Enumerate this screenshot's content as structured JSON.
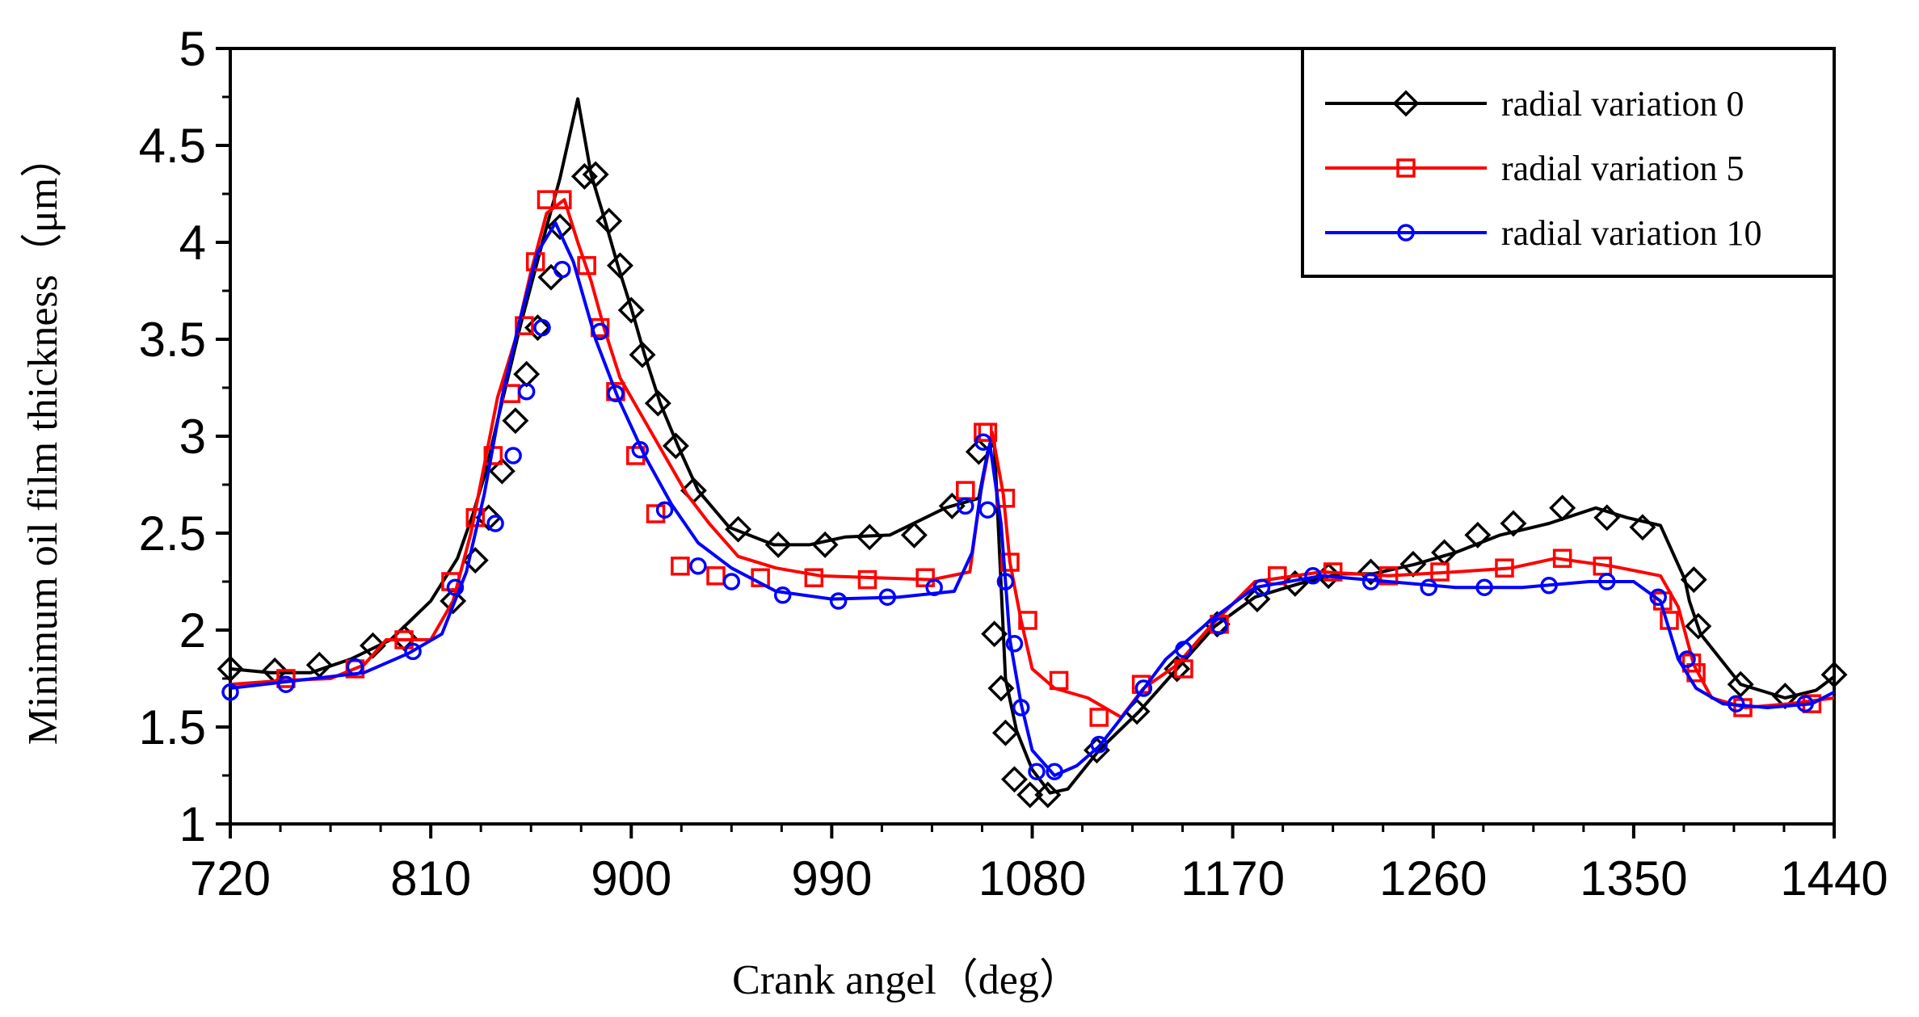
{
  "chart_data": {
    "type": "line",
    "title": "",
    "xlabel": "Crank angel（deg）",
    "ylabel": "Minimum oil film thickness（μm）",
    "xlim": [
      720,
      1440
    ],
    "ylim": [
      1,
      5
    ],
    "x_ticks": [
      720,
      810,
      900,
      990,
      1080,
      1170,
      1260,
      1350,
      1440
    ],
    "x_tick_labels": [
      "720",
      "810",
      "900",
      "990",
      "1080",
      "1170",
      "1260",
      "1350",
      "1440"
    ],
    "y_ticks": [
      1,
      1.5,
      2,
      2.5,
      3,
      3.5,
      4,
      4.5,
      5
    ],
    "y_tick_labels": [
      "1",
      "1.5",
      "2",
      "2.5",
      "3",
      "3.5",
      "4",
      "4.5",
      "5"
    ],
    "legend_position": "top-right",
    "grid": false,
    "series": [
      {
        "name": "radial variation 0",
        "color": "#000000",
        "marker": "diamond",
        "x": [
          720,
          738,
          756,
          774,
          792,
          810,
          822,
          829,
          835,
          840,
          845,
          850,
          856,
          862,
          868,
          876,
          882,
          888,
          894,
          900,
          906,
          913,
          921,
          930,
          944,
          964,
          980,
          996,
          1016,
          1041,
          1056,
          1060,
          1063,
          1068,
          1073,
          1080,
          1088,
          1096,
          1110,
          1128,
          1145,
          1162,
          1180,
          1200,
          1218,
          1233,
          1252,
          1270,
          1290,
          1312,
          1333,
          1347,
          1362,
          1373,
          1375,
          1380,
          1398,
          1418,
          1432,
          1440
        ],
        "y": [
          1.8,
          1.78,
          1.78,
          1.85,
          1.95,
          2.15,
          2.37,
          2.6,
          2.83,
          3.08,
          3.32,
          3.56,
          3.82,
          4.08,
          4.33,
          4.74,
          4.35,
          4.12,
          3.88,
          3.66,
          3.42,
          3.17,
          2.95,
          2.72,
          2.53,
          2.44,
          2.44,
          2.48,
          2.49,
          2.63,
          2.68,
          2.92,
          2.97,
          1.75,
          1.48,
          1.28,
          1.16,
          1.18,
          1.38,
          1.58,
          1.8,
          2.02,
          2.17,
          2.24,
          2.29,
          2.29,
          2.34,
          2.4,
          2.49,
          2.55,
          2.63,
          2.58,
          2.54,
          2.26,
          2.15,
          1.98,
          1.72,
          1.65,
          1.69,
          1.76
        ],
        "marker_x": [
          720,
          740,
          760,
          784,
          798,
          820,
          830,
          836,
          842,
          848,
          853,
          858,
          864,
          868,
          879,
          884,
          890,
          895,
          900,
          905,
          912,
          920,
          928,
          948,
          966,
          987,
          1007,
          1027,
          1044,
          1056,
          1063,
          1066,
          1068,
          1072,
          1079,
          1087,
          1109,
          1127,
          1145,
          1163,
          1181,
          1198,
          1213,
          1232,
          1251,
          1265,
          1280,
          1296,
          1318,
          1338,
          1354,
          1377,
          1379,
          1398,
          1418,
          1440
        ],
        "marker_y": [
          1.8,
          1.79,
          1.82,
          1.92,
          1.96,
          2.15,
          2.36,
          2.58,
          2.82,
          3.08,
          3.32,
          3.56,
          3.82,
          4.08,
          4.34,
          4.35,
          4.11,
          3.88,
          3.65,
          3.42,
          3.17,
          2.95,
          2.72,
          2.52,
          2.44,
          2.44,
          2.48,
          2.49,
          2.64,
          2.92,
          1.98,
          1.7,
          1.47,
          1.23,
          1.15,
          1.15,
          1.38,
          1.58,
          1.8,
          2.03,
          2.16,
          2.24,
          2.28,
          2.3,
          2.34,
          2.4,
          2.49,
          2.55,
          2.63,
          2.58,
          2.53,
          2.26,
          2.02,
          1.72,
          1.66,
          1.77
        ]
      },
      {
        "name": "radial variation 5",
        "color": "#ff0000",
        "marker": "square",
        "x": [
          720,
          744,
          765,
          780,
          790,
          810,
          820,
          828,
          834,
          840,
          848,
          855,
          862,
          870,
          876,
          882,
          888,
          895,
          905,
          915,
          925,
          935,
          948,
          965,
          985,
          1010,
          1035,
          1052,
          1057,
          1062,
          1067,
          1070,
          1075,
          1080,
          1090,
          1105,
          1120,
          1130,
          1145,
          1160,
          1180,
          1210,
          1240,
          1270,
          1295,
          1315,
          1340,
          1362,
          1370,
          1377,
          1385,
          1400,
          1420,
          1440
        ],
        "y": [
          1.72,
          1.74,
          1.75,
          1.82,
          1.95,
          1.95,
          2.15,
          2.5,
          2.85,
          3.2,
          3.5,
          3.85,
          4.15,
          4.22,
          4.0,
          3.8,
          3.55,
          3.3,
          3.1,
          2.9,
          2.7,
          2.55,
          2.38,
          2.32,
          2.28,
          2.27,
          2.26,
          2.3,
          2.72,
          3.02,
          2.7,
          2.35,
          2.05,
          1.8,
          1.7,
          1.65,
          1.55,
          1.7,
          1.82,
          2.02,
          2.25,
          2.3,
          2.28,
          2.3,
          2.32,
          2.37,
          2.33,
          2.28,
          2.12,
          1.82,
          1.65,
          1.6,
          1.62,
          1.65
        ],
        "marker_x": [
          745,
          776,
          798,
          819,
          830,
          838,
          846,
          852,
          857,
          862,
          869,
          880,
          886,
          893,
          902,
          911,
          922,
          938,
          958,
          982,
          1006,
          1032,
          1050,
          1058,
          1060,
          1068,
          1070,
          1078,
          1092,
          1110,
          1129,
          1148,
          1164,
          1190,
          1215,
          1240,
          1263,
          1292,
          1318,
          1336,
          1363,
          1366,
          1376,
          1378,
          1399,
          1430
        ],
        "marker_y": [
          1.75,
          1.8,
          1.95,
          2.25,
          2.58,
          2.9,
          3.22,
          3.57,
          3.9,
          4.22,
          4.22,
          3.88,
          3.56,
          3.23,
          2.9,
          2.6,
          2.33,
          2.28,
          2.27,
          2.27,
          2.26,
          2.27,
          2.72,
          3.02,
          3.02,
          2.68,
          2.35,
          2.05,
          1.74,
          1.55,
          1.72,
          1.8,
          2.03,
          2.28,
          2.3,
          2.28,
          2.3,
          2.32,
          2.37,
          2.33,
          2.15,
          2.05,
          1.83,
          1.78,
          1.6,
          1.62
        ]
      },
      {
        "name": "radial variation 10",
        "color": "#0000ff",
        "marker": "circle",
        "x": [
          720,
          750,
          780,
          800,
          815,
          826,
          834,
          842,
          850,
          858,
          866,
          874,
          884,
          894,
          906,
          918,
          930,
          945,
          965,
          990,
          1020,
          1045,
          1053,
          1058,
          1061,
          1066,
          1070,
          1075,
          1080,
          1090,
          1100,
          1110,
          1125,
          1140,
          1160,
          1180,
          1210,
          1240,
          1270,
          1300,
          1330,
          1350,
          1362,
          1370,
          1378,
          1390,
          1410,
          1430,
          1440
        ],
        "y": [
          1.7,
          1.74,
          1.78,
          1.88,
          1.98,
          2.3,
          2.7,
          3.2,
          3.6,
          3.95,
          4.1,
          3.9,
          3.5,
          3.2,
          2.9,
          2.65,
          2.45,
          2.32,
          2.2,
          2.16,
          2.17,
          2.2,
          2.4,
          2.8,
          2.96,
          2.55,
          1.95,
          1.62,
          1.38,
          1.25,
          1.3,
          1.4,
          1.62,
          1.85,
          2.05,
          2.22,
          2.28,
          2.25,
          2.22,
          2.22,
          2.25,
          2.25,
          2.15,
          1.85,
          1.7,
          1.62,
          1.6,
          1.62,
          1.68
        ],
        "marker_x": [
          720,
          745,
          776,
          802,
          821,
          839,
          847,
          853,
          860,
          869,
          886,
          893,
          904,
          915,
          930,
          945,
          968,
          993,
          1015,
          1036,
          1050,
          1058,
          1060,
          1068,
          1072,
          1075,
          1082,
          1090,
          1110,
          1130,
          1148,
          1164,
          1183,
          1206,
          1232,
          1258,
          1283,
          1312,
          1338,
          1361,
          1374,
          1396,
          1427
        ],
        "marker_y": [
          1.68,
          1.72,
          1.81,
          1.89,
          2.22,
          2.55,
          2.9,
          3.23,
          3.56,
          3.86,
          3.54,
          3.22,
          2.93,
          2.62,
          2.33,
          2.25,
          2.18,
          2.15,
          2.17,
          2.22,
          2.64,
          2.97,
          2.62,
          2.25,
          1.93,
          1.6,
          1.27,
          1.27,
          1.41,
          1.7,
          1.9,
          2.02,
          2.22,
          2.28,
          2.25,
          2.22,
          2.22,
          2.23,
          2.25,
          2.17,
          1.85,
          1.62,
          1.62
        ]
      }
    ]
  }
}
